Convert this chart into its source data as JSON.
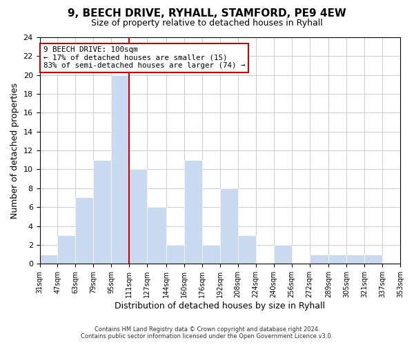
{
  "title": "9, BEECH DRIVE, RYHALL, STAMFORD, PE9 4EW",
  "subtitle": "Size of property relative to detached houses in Ryhall",
  "xlabel": "Distribution of detached houses by size in Ryhall",
  "ylabel": "Number of detached properties",
  "footer_line1": "Contains HM Land Registry data © Crown copyright and database right 2024.",
  "footer_line2": "Contains public sector information licensed under the Open Government Licence v3.0.",
  "bins": [
    31,
    47,
    63,
    79,
    95,
    111,
    127,
    144,
    160,
    176,
    192,
    208,
    224,
    240,
    256,
    272,
    289,
    305,
    321,
    337,
    353
  ],
  "counts": [
    1,
    3,
    7,
    11,
    20,
    10,
    6,
    2,
    11,
    2,
    8,
    3,
    0,
    2,
    0,
    1,
    1,
    1,
    1,
    0
  ],
  "bar_color": "#c9d9f0",
  "bar_edge_color": "#ffffff",
  "reference_line_x": 111,
  "reference_line_color": "#cc0000",
  "annotation_title": "9 BEECH DRIVE: 100sqm",
  "annotation_line1": "← 17% of detached houses are smaller (15)",
  "annotation_line2": "83% of semi-detached houses are larger (74) →",
  "annotation_box_edge": "#cc0000",
  "ylim": [
    0,
    24
  ],
  "yticks": [
    0,
    2,
    4,
    6,
    8,
    10,
    12,
    14,
    16,
    18,
    20,
    22,
    24
  ],
  "x_labels": [
    "31sqm",
    "47sqm",
    "63sqm",
    "79sqm",
    "95sqm",
    "111sqm",
    "127sqm",
    "144sqm",
    "160sqm",
    "176sqm",
    "192sqm",
    "208sqm",
    "224sqm",
    "240sqm",
    "256sqm",
    "272sqm",
    "289sqm",
    "305sqm",
    "321sqm",
    "337sqm",
    "353sqm"
  ]
}
